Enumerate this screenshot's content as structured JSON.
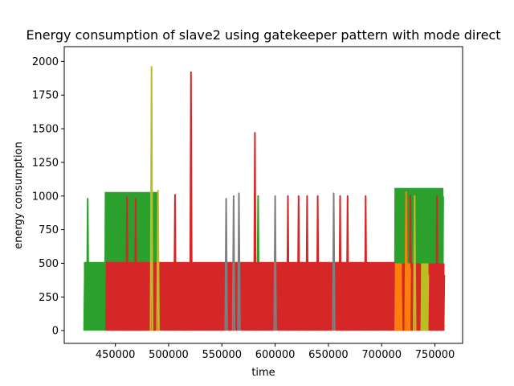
{
  "chart_data": {
    "type": "line",
    "title": "Energy consumption of slave2 using gatekeeper pattern with mode direct",
    "xlabel": "time",
    "ylabel": "energy consumption",
    "xlim": [
      402000,
      776000
    ],
    "ylim": [
      -95,
      2110
    ],
    "x_ticks": [
      450000,
      500000,
      550000,
      600000,
      650000,
      700000,
      750000
    ],
    "y_ticks": [
      0,
      250,
      500,
      750,
      1000,
      1250,
      1500,
      1750,
      2000
    ],
    "grid": false,
    "legend": "none",
    "series": [
      {
        "color": "#2ca02c",
        "bands": [
          {
            "x0": 420500,
            "x1": 441000,
            "low": 0,
            "high": 510
          },
          {
            "x0": 440000,
            "x1": 490000,
            "low": 0,
            "high": 1030
          },
          {
            "x0": 512000,
            "x1": 518000,
            "low": 0,
            "high": 500
          },
          {
            "x0": 712000,
            "x1": 758000,
            "low": 0,
            "high": 1060
          }
        ],
        "spikes": [
          {
            "x": 424000,
            "y": 980
          },
          {
            "x": 584000,
            "y": 1000
          }
        ]
      },
      {
        "color": "#d62728",
        "bands": [
          {
            "x0": 441000,
            "x1": 712000,
            "low": 0,
            "high": 510
          },
          {
            "x0": 712000,
            "x1": 759000,
            "low": 0,
            "high": 500
          }
        ],
        "spikes": [
          {
            "x": 461000,
            "y": 990
          },
          {
            "x": 469000,
            "y": 980
          },
          {
            "x": 506000,
            "y": 1010
          },
          {
            "x": 521000,
            "y": 1920
          },
          {
            "x": 581000,
            "y": 1470
          },
          {
            "x": 612000,
            "y": 1000
          },
          {
            "x": 622000,
            "y": 1000
          },
          {
            "x": 630000,
            "y": 1000
          },
          {
            "x": 640000,
            "y": 1000
          },
          {
            "x": 661000,
            "y": 1000
          },
          {
            "x": 668000,
            "y": 1000
          },
          {
            "x": 685000,
            "y": 1000
          },
          {
            "x": 727000,
            "y": 1000
          },
          {
            "x": 752000,
            "y": 1000
          }
        ]
      },
      {
        "color": "#ff7f0e",
        "bands": [
          {
            "x0": 712500,
            "x1": 719000,
            "low": 0,
            "high": 500
          },
          {
            "x0": 724000,
            "x1": 727000,
            "low": 0,
            "high": 500
          }
        ],
        "spikes": [
          {
            "x": 723000,
            "y": 1030
          }
        ]
      },
      {
        "color": "#bcbd22",
        "bands": [
          {
            "x0": 737000,
            "x1": 744000,
            "low": 0,
            "high": 500
          }
        ],
        "spikes": [
          {
            "x": 484000,
            "y": 1960
          },
          {
            "x": 490000,
            "y": 1040
          },
          {
            "x": 731000,
            "y": 1000
          }
        ]
      },
      {
        "color": "#7f7f7f",
        "bands": [],
        "spikes": [
          {
            "x": 554000,
            "y": 980
          },
          {
            "x": 561000,
            "y": 1000
          },
          {
            "x": 566000,
            "y": 1020
          },
          {
            "x": 600000,
            "y": 1000
          },
          {
            "x": 655000,
            "y": 1020
          }
        ]
      }
    ]
  }
}
